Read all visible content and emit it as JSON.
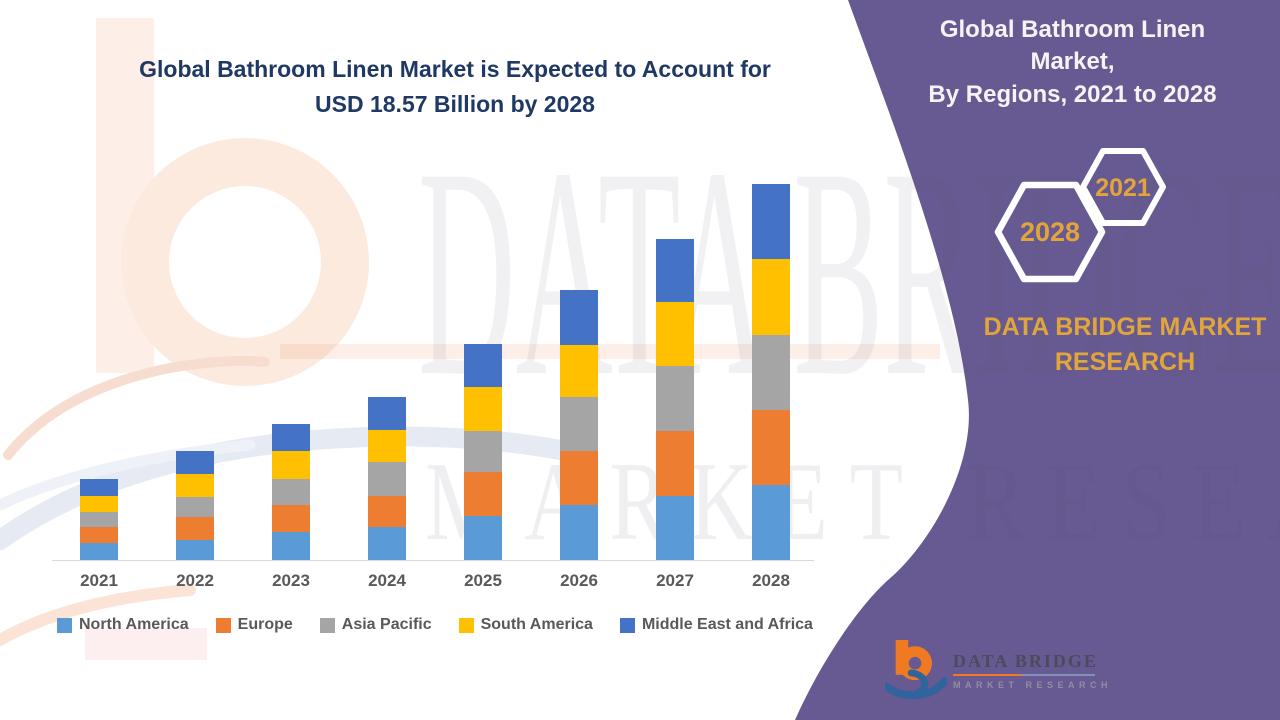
{
  "header": {
    "title_line1": "Global Bathroom Linen Market is Expected to Account for",
    "title_line2": "USD 18.57 Billion by 2028"
  },
  "side_panel": {
    "title_line1": "Global Bathroom Linen Market,",
    "title_line2": "By Regions,  2021 to 2028",
    "hexagons": [
      {
        "label": "2028"
      },
      {
        "label": "2021"
      }
    ],
    "brand_line1": "DATA BRIDGE MARKET",
    "brand_line2": "RESEARCH",
    "colors": {
      "panel": "#675991",
      "accent_gold": "#e0a63c",
      "hex_outline": "#ffffff"
    }
  },
  "watermark": {
    "line1": "DATA BRIDGE",
    "line2": "MARKET RESEARCH"
  },
  "logo": {
    "name_line": "DATA BRIDGE",
    "sub_line": "MARKET RESEARCH"
  },
  "chart_data": {
    "type": "bar",
    "stacked": true,
    "title": "Global Bathroom Linen Market is Expected to Account for USD 18.57 Billion by 2028",
    "units": "USD Billion (estimated from bar heights; 2028 total anchored to 18.57)",
    "categories": [
      "2021",
      "2022",
      "2023",
      "2024",
      "2025",
      "2026",
      "2027",
      "2028"
    ],
    "series": [
      {
        "name": "North America",
        "color": "#5B9BD5",
        "values": [
          0.82,
          0.99,
          1.39,
          1.63,
          2.18,
          2.72,
          3.17,
          3.71
        ]
      },
      {
        "name": "Europe",
        "color": "#ED7D31",
        "values": [
          0.79,
          1.14,
          1.34,
          1.54,
          2.18,
          2.67,
          3.22,
          3.71
        ]
      },
      {
        "name": "Asia Pacific",
        "color": "#A5A5A5",
        "values": [
          0.77,
          0.99,
          1.29,
          1.68,
          2.03,
          2.67,
          3.17,
          3.71
        ]
      },
      {
        "name": "South America",
        "color": "#FFC000",
        "values": [
          0.79,
          1.14,
          1.34,
          1.58,
          2.13,
          2.57,
          3.17,
          3.71
        ]
      },
      {
        "name": "Middle East and Africa",
        "color": "#4472C4",
        "values": [
          0.83,
          1.14,
          1.34,
          1.63,
          2.13,
          2.72,
          3.12,
          3.73
        ]
      }
    ],
    "totals": [
      4.0,
      5.4,
      6.7,
      8.06,
      10.65,
      13.35,
      15.85,
      18.57
    ],
    "legend_position": "bottom",
    "grid": false,
    "y_axis_visible": false,
    "x_axis_labels": [
      "2021",
      "2022",
      "2023",
      "2024",
      "2025",
      "2026",
      "2027",
      "2028"
    ]
  }
}
